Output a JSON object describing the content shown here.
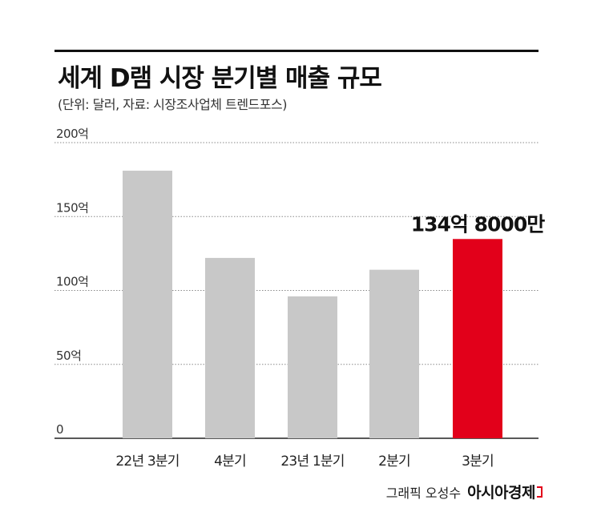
{
  "header": {
    "title": "세계 D램 시장 분기별 매출 규모",
    "subtitle": "(단위: 달러, 자료: 시장조사업체 트렌드포스)"
  },
  "credit": {
    "author": "그래픽 오성수",
    "brand": "아시아경제"
  },
  "colors": {
    "bar_default": "#c8c8c8",
    "bar_highlight": "#e2001a",
    "grid": "#8a8a8a"
  },
  "chart_data": {
    "type": "bar",
    "categories": [
      "22년 3분기",
      "4분기",
      "23년 1분기",
      "2분기",
      "3분기"
    ],
    "values": [
      181,
      122,
      96,
      114,
      134.8
    ],
    "highlight_index": 4,
    "data_labels": [
      "",
      "",
      "",
      "",
      "134억 8000만"
    ],
    "y_ticks": [
      {
        "value": 0,
        "label": "0"
      },
      {
        "value": 50,
        "label": "50억"
      },
      {
        "value": 100,
        "label": "100억"
      },
      {
        "value": 150,
        "label": "150억"
      },
      {
        "value": 200,
        "label": "200억"
      }
    ],
    "ylim": [
      0,
      200
    ],
    "grid": true
  }
}
